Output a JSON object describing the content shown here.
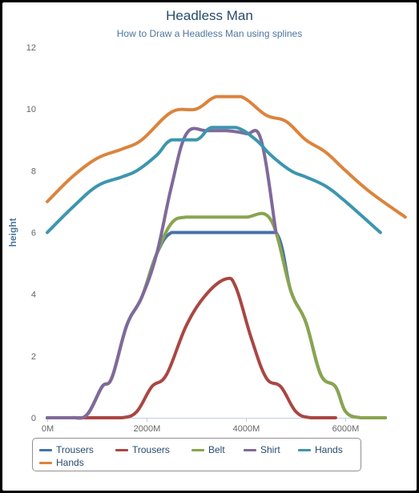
{
  "chart_data": {
    "type": "line",
    "title": "Headless Man",
    "subtitle": "How to Draw a Headless Man using splines",
    "xlabel": "",
    "ylabel": "height",
    "xlim": [
      0,
      6800
    ],
    "ylim": [
      0,
      12
    ],
    "x_ticks": [
      {
        "value": 0,
        "label": "0M"
      },
      {
        "value": 2000,
        "label": "2000M"
      },
      {
        "value": 4000,
        "label": "4000M"
      },
      {
        "value": 6000,
        "label": "6000M"
      }
    ],
    "y_ticks": [
      {
        "value": 0,
        "label": "0"
      },
      {
        "value": 2,
        "label": "2"
      },
      {
        "value": 4,
        "label": "4"
      },
      {
        "value": 6,
        "label": "6"
      },
      {
        "value": 8,
        "label": "8"
      },
      {
        "value": 10,
        "label": "10"
      },
      {
        "value": 12,
        "label": "12"
      }
    ],
    "grid": false,
    "legend_position": "bottom-left",
    "series": [
      {
        "name": "Trousers",
        "color": "#4572A7",
        "points": [
          [
            0,
            0
          ],
          [
            500,
            0
          ],
          [
            800,
            0.1
          ],
          [
            1100,
            1
          ],
          [
            1300,
            1.3
          ],
          [
            1600,
            3
          ],
          [
            1900,
            3.9
          ],
          [
            2200,
            5.3
          ],
          [
            2500,
            6
          ],
          [
            3000,
            6
          ],
          [
            3500,
            6
          ],
          [
            4000,
            6
          ],
          [
            4600,
            6
          ],
          [
            4900,
            4.1
          ],
          [
            5200,
            3.1
          ],
          [
            5500,
            1.4
          ],
          [
            5800,
            1
          ],
          [
            6000,
            0.2
          ],
          [
            6300,
            0
          ],
          [
            6800,
            0
          ]
        ]
      },
      {
        "name": "Trousers",
        "color": "#AA4643",
        "points": [
          [
            0,
            0
          ],
          [
            1000,
            0
          ],
          [
            1500,
            0
          ],
          [
            1800,
            0.2
          ],
          [
            2100,
            1
          ],
          [
            2400,
            1.4
          ],
          [
            2800,
            3
          ],
          [
            3200,
            4
          ],
          [
            3600,
            4.5
          ],
          [
            3800,
            4.2
          ],
          [
            4100,
            2.6
          ],
          [
            4400,
            1.3
          ],
          [
            4700,
            1
          ],
          [
            5000,
            0.2
          ],
          [
            5300,
            0
          ],
          [
            5800,
            0
          ]
        ]
      },
      {
        "name": "Belt",
        "color": "#89A54E",
        "points": [
          [
            0,
            0
          ],
          [
            500,
            0
          ],
          [
            800,
            0.1
          ],
          [
            1100,
            1
          ],
          [
            1300,
            1.3
          ],
          [
            1600,
            3
          ],
          [
            1900,
            3.9
          ],
          [
            2200,
            5.3
          ],
          [
            2500,
            6.3
          ],
          [
            2800,
            6.5
          ],
          [
            3200,
            6.5
          ],
          [
            3600,
            6.5
          ],
          [
            4000,
            6.5
          ],
          [
            4500,
            6.4
          ],
          [
            4900,
            4.1
          ],
          [
            5200,
            3.1
          ],
          [
            5500,
            1.4
          ],
          [
            5800,
            1
          ],
          [
            6000,
            0.2
          ],
          [
            6300,
            0
          ],
          [
            6800,
            0
          ]
        ]
      },
      {
        "name": "Shirt",
        "color": "#80699B",
        "points": [
          [
            0,
            0
          ],
          [
            500,
            0
          ],
          [
            800,
            0.1
          ],
          [
            1100,
            1
          ],
          [
            1300,
            1.3
          ],
          [
            1600,
            3
          ],
          [
            1900,
            3.9
          ],
          [
            2200,
            5.3
          ],
          [
            2500,
            7.5
          ],
          [
            2800,
            9.2
          ],
          [
            3200,
            9.3
          ],
          [
            3600,
            9.3
          ],
          [
            4000,
            9.2
          ],
          [
            4300,
            9
          ],
          [
            4600,
            6
          ]
        ]
      },
      {
        "name": "Hands",
        "color": "#3D96AE",
        "points": [
          [
            0,
            6
          ],
          [
            500,
            6.8
          ],
          [
            1000,
            7.5
          ],
          [
            1500,
            7.8
          ],
          [
            1800,
            8
          ],
          [
            2200,
            8.5
          ],
          [
            2500,
            9
          ],
          [
            3000,
            9
          ],
          [
            3300,
            9.4
          ],
          [
            3800,
            9.4
          ],
          [
            4200,
            9
          ],
          [
            4500,
            8.5
          ],
          [
            4900,
            8
          ],
          [
            5200,
            7.8
          ],
          [
            5600,
            7.5
          ],
          [
            6000,
            7
          ],
          [
            6700,
            6
          ]
        ]
      },
      {
        "name": "Hands",
        "color": "#DB843D",
        "points": [
          [
            0,
            7
          ],
          [
            500,
            7.8
          ],
          [
            1000,
            8.4
          ],
          [
            1500,
            8.7
          ],
          [
            1900,
            9
          ],
          [
            2500,
            9.9
          ],
          [
            3000,
            10
          ],
          [
            3400,
            10.4
          ],
          [
            3900,
            10.4
          ],
          [
            4400,
            9.8
          ],
          [
            4800,
            9.6
          ],
          [
            5200,
            9
          ],
          [
            5600,
            8.6
          ],
          [
            6000,
            8
          ],
          [
            6500,
            7.3
          ],
          [
            7200,
            6.5
          ]
        ]
      }
    ]
  }
}
